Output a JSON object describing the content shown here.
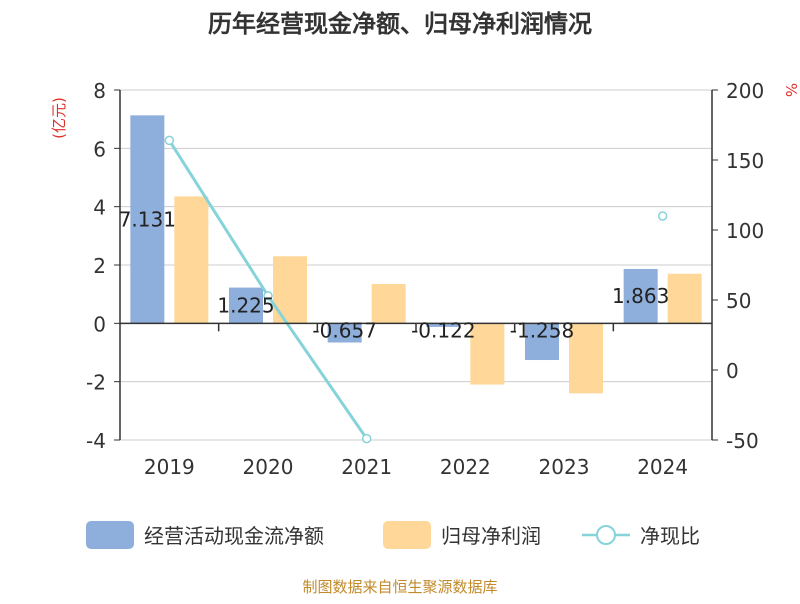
{
  "chart_data": {
    "type": "bar+line",
    "title": "历年经营现金净额、归母净利润情况",
    "categories": [
      "2019",
      "2020",
      "2021",
      "2022",
      "2023",
      "2024"
    ],
    "y_left": {
      "label": "(亿元)",
      "min": -4,
      "max": 8,
      "step": 2
    },
    "y_right": {
      "label": "%",
      "min": -50,
      "max": 200,
      "step": 50
    },
    "series": [
      {
        "name": "经营活动现金流净额",
        "type": "bar",
        "axis": "left",
        "color": "#8eaedb",
        "values": [
          7.131,
          1.225,
          -0.657,
          -0.122,
          -1.258,
          1.863
        ],
        "labels": [
          "7.131",
          "1.225",
          "-0.657",
          "-0.122",
          "-1.258",
          "1.863"
        ]
      },
      {
        "name": "归母净利润",
        "type": "bar",
        "axis": "left",
        "color": "#ffd899",
        "values": [
          4.35,
          2.3,
          1.35,
          -2.1,
          -2.4,
          1.7
        ]
      },
      {
        "name": "净现比",
        "type": "line",
        "axis": "right",
        "color": "#86d3d9",
        "values": [
          164,
          53,
          -49,
          null,
          null,
          110
        ]
      }
    ],
    "legend_position": "bottom",
    "grid": true
  },
  "footer": {
    "source": "制图数据来自恒生聚源数据库"
  }
}
